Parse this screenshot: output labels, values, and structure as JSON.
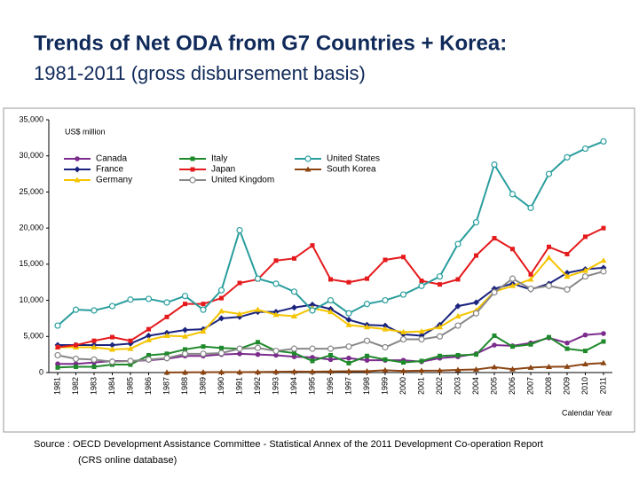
{
  "chart_data": {
    "type": "line",
    "title": "Trends of Net ODA from G7 Countries + Korea:",
    "subtitle": "1981-2011 (gross disbursement basis)",
    "y_axis_label": "US$ million",
    "x_axis_label": "Calendar Year",
    "source": "Source : OECD Development Assistance Committee - Statistical Annex of the 2011 Development Co-operation Report",
    "source_note": "(CRS online database)",
    "categories": [
      "1981",
      "1982",
      "1983",
      "1984",
      "1985",
      "1986",
      "1987",
      "1988",
      "1989",
      "1990",
      "1991",
      "1992",
      "1993",
      "1994",
      "1995",
      "1996",
      "1997",
      "1998",
      "1999",
      "2000",
      "2001",
      "2002",
      "2003",
      "2004",
      "2005",
      "2006",
      "2007",
      "2008",
      "2009",
      "2010",
      "2011"
    ],
    "ylim": [
      0,
      35000
    ],
    "yticks": [
      0,
      {
        "value": 5000,
        "label": "5,000"
      },
      {
        "value": 10000,
        "label": "10,000"
      },
      {
        "value": 15000,
        "label": "15,000"
      },
      {
        "value": 20000,
        "label": "20,000"
      },
      {
        "value": 25000,
        "label": "25,000"
      },
      {
        "value": 30000,
        "label": "30,000"
      },
      {
        "value": 35000,
        "label": "35,000"
      }
    ],
    "legend_position": "top-left",
    "series": [
      {
        "name": "Canada",
        "color": "#7b2c8c",
        "marker": "circle",
        "values": [
          1200,
          1200,
          1400,
          1600,
          1600,
          1700,
          1900,
          2300,
          2300,
          2500,
          2600,
          2500,
          2400,
          2200,
          2100,
          1800,
          2000,
          1700,
          1700,
          1700,
          1500,
          2000,
          2200,
          2600,
          3800,
          3700,
          4100,
          4800,
          4100,
          5200,
          5400
        ]
      },
      {
        "name": "France",
        "color": "#1a237e",
        "marker": "diamond",
        "values": [
          3800,
          3800,
          3800,
          3800,
          4000,
          5100,
          5500,
          5900,
          6000,
          7500,
          7700,
          8400,
          8400,
          9000,
          9400,
          8800,
          7300,
          6600,
          6500,
          5300,
          5100,
          6600,
          9200,
          9700,
          11600,
          12300,
          11500,
          12300,
          13800,
          14300,
          14500
        ]
      },
      {
        "name": "Germany",
        "color": "#f5c400",
        "marker": "triangle",
        "values": [
          3500,
          3500,
          3500,
          3200,
          3300,
          4500,
          5100,
          5000,
          5700,
          8500,
          8100,
          8700,
          8000,
          7800,
          8900,
          8400,
          6600,
          6300,
          6000,
          5600,
          5700,
          6300,
          7800,
          8600,
          11200,
          12000,
          12900,
          15900,
          13300,
          14100,
          15500
        ]
      },
      {
        "name": "Italy",
        "color": "#1f8a2c",
        "marker": "square",
        "values": [
          700,
          800,
          800,
          1100,
          1100,
          2400,
          2600,
          3200,
          3600,
          3400,
          3300,
          4200,
          3000,
          2700,
          1600,
          2400,
          1300,
          2300,
          1800,
          1400,
          1600,
          2300,
          2400,
          2500,
          5100,
          3600,
          3900,
          4900,
          3300,
          3000,
          4300
        ]
      },
      {
        "name": "Japan",
        "color": "#e41a1c",
        "marker": "square",
        "values": [
          3500,
          3800,
          4400,
          4900,
          4400,
          6000,
          7700,
          9500,
          9500,
          10300,
          12400,
          12900,
          15500,
          15800,
          17600,
          12900,
          12500,
          13000,
          15600,
          16000,
          12700,
          12200,
          12900,
          16200,
          18600,
          17100,
          13600,
          17400,
          16400,
          18800,
          20000
        ]
      },
      {
        "name": "United Kingdom",
        "color": "#888888",
        "marker": "open-circle",
        "values": [
          2400,
          1900,
          1800,
          1500,
          1600,
          1800,
          2000,
          2600,
          2600,
          2700,
          3300,
          3400,
          3000,
          3300,
          3300,
          3300,
          3600,
          4400,
          3500,
          4600,
          4600,
          5000,
          6500,
          8200,
          11100,
          13000,
          11600,
          12000,
          11500,
          13300,
          14000
        ]
      },
      {
        "name": "United States",
        "color": "#2a9d9d",
        "marker": "open-circle",
        "values": [
          6500,
          8700,
          8600,
          9200,
          10100,
          10200,
          9700,
          10600,
          8700,
          11400,
          19700,
          13000,
          12300,
          11200,
          8600,
          10000,
          8200,
          9500,
          10000,
          10800,
          12000,
          13300,
          17800,
          20800,
          28800,
          24700,
          22800,
          27500,
          29800,
          31000,
          32000
        ]
      },
      {
        "name": "South Korea",
        "color": "#8b4513",
        "marker": "triangle",
        "values": [
          null,
          null,
          null,
          null,
          null,
          null,
          23,
          35,
          45,
          60,
          57,
          77,
          112,
          140,
          116,
          159,
          186,
          183,
          318,
          212,
          265,
          279,
          366,
          423,
          752,
          455,
          696,
          802,
          816,
          1174,
          1325
        ]
      }
    ]
  }
}
